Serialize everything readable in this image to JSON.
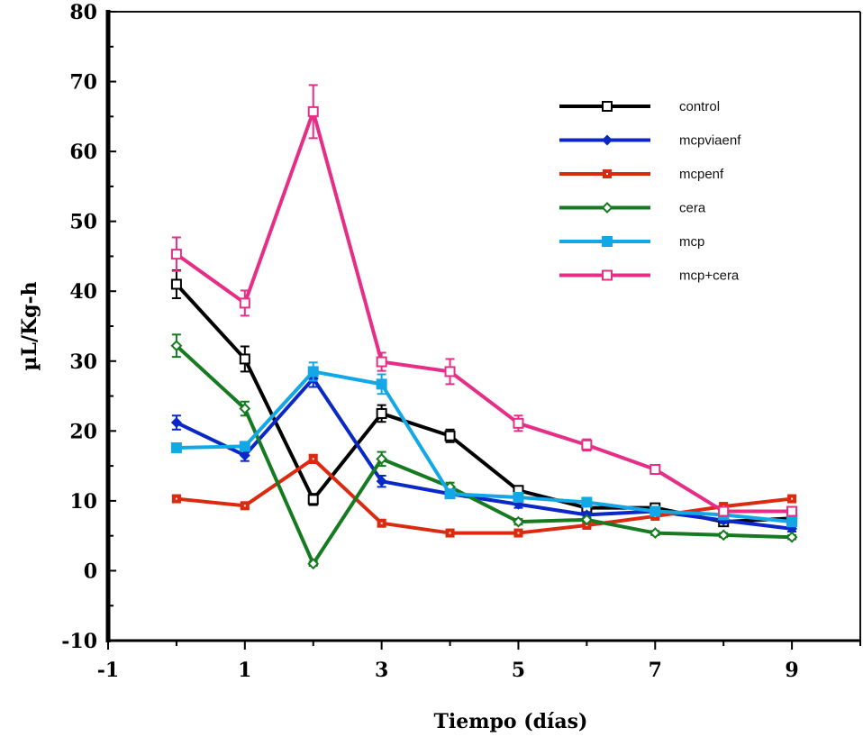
{
  "chart_data": {
    "type": "line",
    "title": "",
    "xlabel": "Tiempo (días)",
    "ylabel": "µL/Kg-h",
    "xlim": [
      -1,
      10
    ],
    "ylim": [
      -10,
      80
    ],
    "x_ticks": [
      -1,
      1,
      3,
      5,
      7,
      9
    ],
    "y_ticks": [
      -10,
      0,
      10,
      20,
      30,
      40,
      50,
      60,
      70,
      80
    ],
    "grid": false,
    "legend_position": "top-right",
    "x": [
      0,
      1,
      2,
      3,
      4,
      5,
      6,
      7,
      8,
      9
    ],
    "series": [
      {
        "name": "control",
        "color": "#000000",
        "marker": "open-square",
        "values": [
          41.0,
          30.3,
          10.2,
          22.5,
          19.3,
          11.5,
          9.0,
          9.0,
          7.0,
          7.5
        ],
        "errors": [
          2.0,
          1.8,
          0.8,
          1.2,
          0.9,
          0.6,
          0.5,
          0.5,
          0.5,
          0.5
        ]
      },
      {
        "name": "mcpviaenf",
        "color": "#0a28c8",
        "marker": "filled-diamond",
        "values": [
          21.2,
          16.5,
          27.5,
          12.8,
          11.0,
          9.5,
          8.0,
          8.5,
          7.2,
          6.0
        ],
        "errors": [
          1.0,
          0.8,
          1.2,
          0.8,
          0.5,
          0.5,
          0.4,
          0.4,
          0.4,
          0.4
        ]
      },
      {
        "name": "mcpenf",
        "color": "#dc2a10",
        "marker": "filled-square-dot",
        "values": [
          10.3,
          9.3,
          16.0,
          6.8,
          5.4,
          5.4,
          6.5,
          7.8,
          9.2,
          10.3
        ],
        "errors": [
          0.4,
          0.4,
          0.6,
          0.4,
          0.3,
          0.3,
          0.3,
          0.3,
          0.4,
          0.4
        ]
      },
      {
        "name": "cera",
        "color": "#157a20",
        "marker": "open-diamond",
        "values": [
          32.2,
          23.2,
          1.0,
          16.0,
          12.0,
          7.0,
          7.3,
          5.4,
          5.1,
          4.8
        ],
        "errors": [
          1.6,
          1.0,
          0.3,
          1.0,
          0.6,
          0.4,
          0.3,
          0.3,
          0.3,
          0.3
        ]
      },
      {
        "name": "mcp",
        "color": "#12a8e6",
        "marker": "filled-square",
        "values": [
          17.6,
          17.8,
          28.5,
          26.7,
          11.0,
          10.5,
          9.8,
          8.5,
          8.0,
          7.0
        ],
        "errors": [
          0.6,
          0.6,
          1.3,
          1.4,
          0.5,
          0.5,
          0.4,
          0.4,
          0.4,
          0.4
        ]
      },
      {
        "name": "mcp+cera",
        "color": "#e62e86",
        "marker": "open-square",
        "values": [
          45.3,
          38.3,
          65.7,
          29.9,
          28.5,
          21.1,
          18.0,
          14.5,
          8.5,
          8.5
        ],
        "errors": [
          2.4,
          1.8,
          3.8,
          1.3,
          1.8,
          1.1,
          0.8,
          0.5,
          0.5,
          0.5
        ]
      }
    ]
  }
}
